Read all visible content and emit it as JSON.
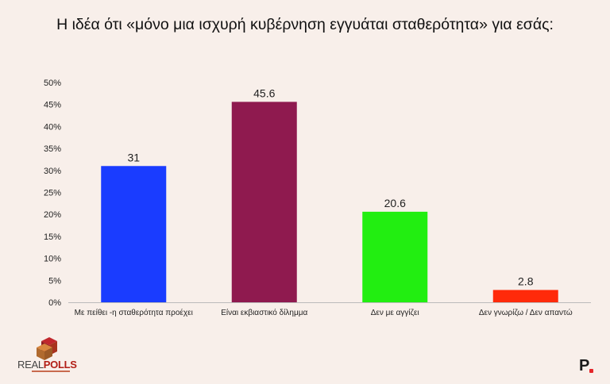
{
  "title": "Η ιδέα ότι «μόνο μια ισχυρή κυβέρνηση εγγυάται σταθερότητα» για εσάς:",
  "chart_data": {
    "type": "bar",
    "categories": [
      "Με πείθει -η σταθερότητα προέχει",
      "Είναι εκβιαστικό δίλημμα",
      "Δεν με αγγίζει",
      "Δεν γνωρίζω /  Δεν απαντώ"
    ],
    "values": [
      31,
      45.6,
      20.6,
      2.8
    ],
    "value_labels": [
      "31",
      "45.6",
      "20.6",
      "2.8"
    ],
    "colors": [
      "#1a3cff",
      "#8f1a4f",
      "#22ee11",
      "#ff2a0a"
    ],
    "ylim": [
      0,
      50
    ],
    "yticks": [
      "0%",
      "5%",
      "10%",
      "15%",
      "20%",
      "25%",
      "30%",
      "35%",
      "40%",
      "45%",
      "50%"
    ],
    "grid": false,
    "legend": "none"
  },
  "branding": {
    "logo_text_main": "REAL",
    "logo_text_accent": "POLLS",
    "corner_mark": "P"
  }
}
